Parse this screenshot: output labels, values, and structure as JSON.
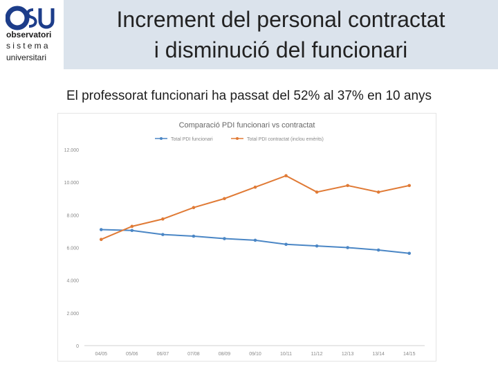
{
  "slide": {
    "title_line1": "Increment del personal contractat",
    "title_line2": "i disminució del funcionari",
    "subtitle": "El professorat funcionari ha passat del 52% al 37% en 10 anys"
  },
  "logo": {
    "line1": "observatori",
    "line2": "sistema",
    "line3": "universitari",
    "colors": {
      "o": "#1d3d8a",
      "s": "#1d3d8a",
      "u": "#1d3d8a"
    }
  },
  "chart_data": {
    "type": "line",
    "title": "Comparació PDI funcionari vs contractat",
    "categories": [
      "04/05",
      "05/06",
      "06/07",
      "07/08",
      "08/09",
      "09/10",
      "10/11",
      "11/12",
      "12/13",
      "13/14",
      "14/15"
    ],
    "y_ticks": [
      "0",
      "2.000",
      "4.000",
      "6.000",
      "8.000",
      "10.000",
      "12.000"
    ],
    "ylim": [
      0,
      12000
    ],
    "legend_position": "top",
    "grid": false,
    "series": [
      {
        "name": "Total PDI funcionari",
        "color": "#4a86c5",
        "values": [
          7100,
          7050,
          6800,
          6700,
          6550,
          6450,
          6200,
          6100,
          6000,
          5850,
          5650
        ]
      },
      {
        "name": "Total PDI contractat (inclou emèrits)",
        "color": "#e07a35",
        "values": [
          6500,
          7300,
          7750,
          8450,
          9000,
          9700,
          10400,
          9400,
          9800,
          9400,
          9800
        ]
      }
    ]
  }
}
